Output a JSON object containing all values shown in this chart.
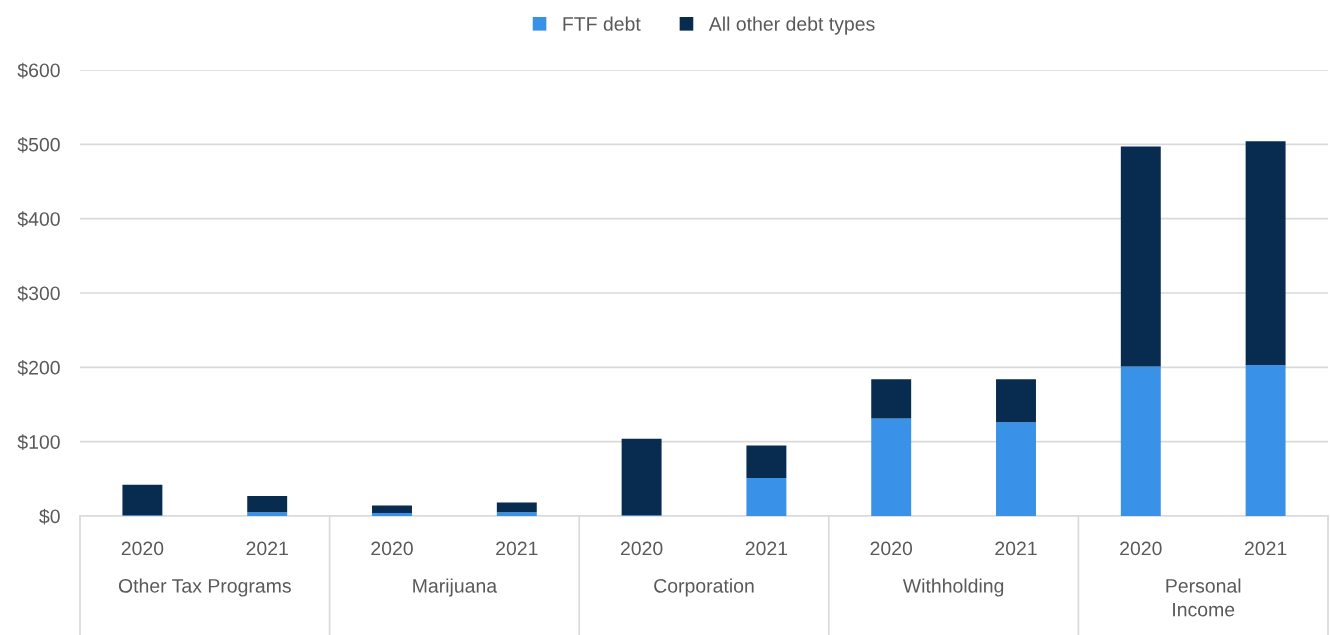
{
  "chart_data": {
    "type": "bar",
    "stacked": true,
    "categories": [
      "2020",
      "2021",
      "2020",
      "2021",
      "2020",
      "2021",
      "2020",
      "2021",
      "2020",
      "2021"
    ],
    "annotations": [
      "Other Tax Programs",
      "Marijuana",
      "Corporation",
      "Withholding",
      "Personal\nIncome"
    ],
    "series": [
      {
        "name": "FTF debt",
        "color": "#3a91e8",
        "values": [
          1,
          5,
          4,
          5,
          1,
          51,
          131,
          126,
          201,
          203
        ]
      },
      {
        "name": "All other debt types",
        "color": "#082b50",
        "values": [
          41,
          22,
          10,
          13,
          103,
          44,
          53,
          58,
          296,
          301
        ]
      }
    ],
    "ylim": [
      0,
      600
    ],
    "yticks": [
      {
        "value": 0,
        "label": "$0"
      },
      {
        "value": 100,
        "label": "$100"
      },
      {
        "value": 200,
        "label": "$200"
      },
      {
        "value": 300,
        "label": "$300"
      },
      {
        "value": 400,
        "label": "$400"
      },
      {
        "value": 500,
        "label": "$500"
      },
      {
        "value": 600,
        "label": "$600"
      }
    ],
    "grid": "y",
    "legend": "top"
  }
}
